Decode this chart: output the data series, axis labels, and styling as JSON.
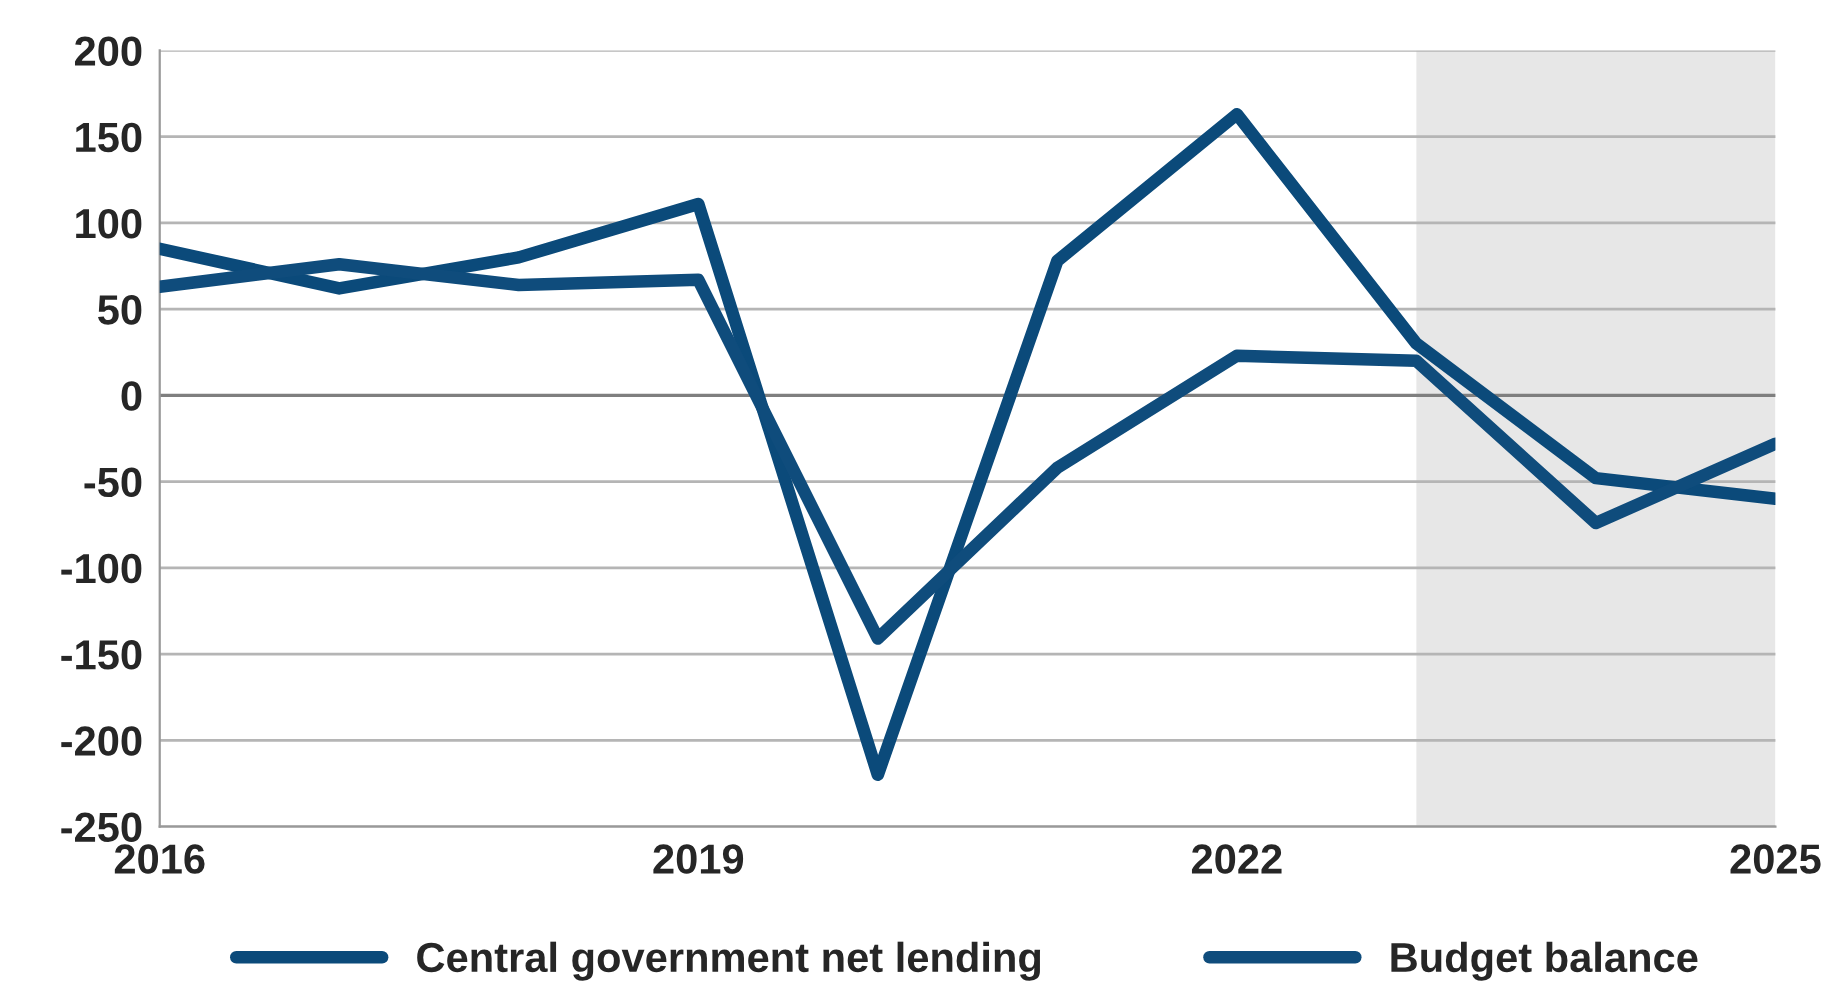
{
  "chart_data": {
    "type": "line",
    "x": [
      2016,
      2017,
      2018,
      2019,
      2020,
      2021,
      2022,
      2023,
      2024,
      2025
    ],
    "series": [
      {
        "name": "Central government net lending",
        "color": "#0b4a7a",
        "values": [
          85,
          62,
          80,
          111,
          -220,
          78,
          163,
          30,
          -48,
          -60
        ]
      },
      {
        "name": "Budget balance",
        "color": "#0f4c7c",
        "values": [
          63,
          76,
          64,
          67,
          -141,
          -42,
          23,
          20,
          -74,
          -28
        ]
      }
    ],
    "xlim": [
      2016,
      2025
    ],
    "xticks": [
      2016,
      2019,
      2022,
      2025
    ],
    "ylim": [
      -250,
      200
    ],
    "yticks": [
      -250,
      -200,
      -150,
      -100,
      -50,
      0,
      50,
      100,
      150,
      200
    ],
    "bands": [
      {
        "axis": "x",
        "from": 2023,
        "to": 2025,
        "color": "#e7e7e7"
      }
    ],
    "grid": "y",
    "legend": "bottom",
    "marker": "none",
    "line_style": "solid"
  }
}
